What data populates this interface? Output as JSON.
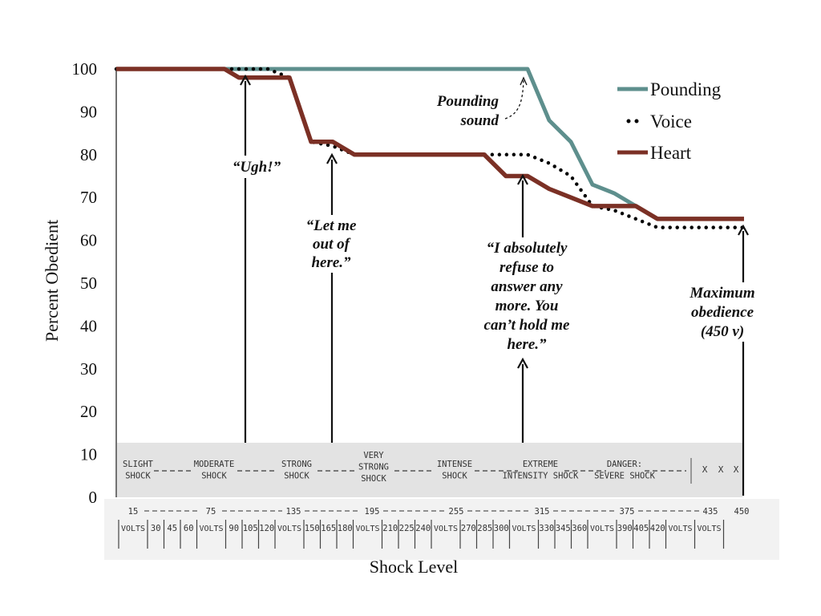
{
  "chart_data": {
    "type": "line",
    "ylabel": "Percent Obedient",
    "xlabel": "Shock Level",
    "ylim": [
      0,
      100
    ],
    "xlim": [
      15,
      450
    ],
    "yticks": [
      0,
      10,
      20,
      30,
      40,
      50,
      60,
      70,
      80,
      90,
      100
    ],
    "series": [
      {
        "name": "Pounding",
        "color": "#5e8f8d",
        "style": "solid",
        "points": [
          [
            15,
            100
          ],
          [
            285,
            100
          ],
          [
            300,
            100
          ],
          [
            315,
            88
          ],
          [
            330,
            83
          ],
          [
            345,
            73
          ],
          [
            360,
            71
          ],
          [
            375,
            68
          ],
          [
            390,
            65
          ],
          [
            405,
            65
          ],
          [
            420,
            65
          ],
          [
            435,
            65
          ],
          [
            450,
            65
          ]
        ]
      },
      {
        "name": "Voice",
        "color": "#000000",
        "style": "dotted",
        "points": [
          [
            15,
            100
          ],
          [
            90,
            100
          ],
          [
            120,
            100
          ],
          [
            135,
            98
          ],
          [
            150,
            83
          ],
          [
            165,
            82
          ],
          [
            180,
            80
          ],
          [
            195,
            80
          ],
          [
            210,
            80
          ],
          [
            225,
            80
          ],
          [
            240,
            80
          ],
          [
            255,
            80
          ],
          [
            270,
            80
          ],
          [
            285,
            80
          ],
          [
            300,
            80
          ],
          [
            315,
            78
          ],
          [
            330,
            75
          ],
          [
            345,
            68
          ],
          [
            360,
            67
          ],
          [
            375,
            65
          ],
          [
            390,
            63
          ],
          [
            405,
            63
          ],
          [
            420,
            63
          ],
          [
            435,
            63
          ],
          [
            450,
            63
          ]
        ]
      },
      {
        "name": "Heart",
        "color": "#7b3025",
        "style": "solid",
        "points": [
          [
            15,
            100
          ],
          [
            90,
            100
          ],
          [
            100,
            98
          ],
          [
            120,
            98
          ],
          [
            135,
            98
          ],
          [
            150,
            83
          ],
          [
            165,
            83
          ],
          [
            180,
            80
          ],
          [
            195,
            80
          ],
          [
            210,
            80
          ],
          [
            225,
            80
          ],
          [
            240,
            80
          ],
          [
            255,
            80
          ],
          [
            270,
            80
          ],
          [
            285,
            75
          ],
          [
            300,
            75
          ],
          [
            315,
            72
          ],
          [
            330,
            70
          ],
          [
            345,
            68
          ],
          [
            360,
            68
          ],
          [
            375,
            68
          ],
          [
            390,
            65
          ],
          [
            405,
            65
          ],
          [
            420,
            65
          ],
          [
            435,
            65
          ],
          [
            450,
            65
          ]
        ]
      }
    ],
    "annotations": [
      {
        "text": "“Ugh!”",
        "x": 105,
        "y": 98
      },
      {
        "text": "“Let me out of here.”",
        "x": 150,
        "y": 80
      },
      {
        "text": "Pounding sound",
        "x": 300,
        "y": 100
      },
      {
        "text": "“I absolutely refuse to answer any more. You can’t hold me here.”",
        "x": 300,
        "y": 75
      },
      {
        "text": "Maximum obedience (450 v)",
        "x": 450,
        "y": 63
      }
    ],
    "legend_position": "top-right",
    "shock_categories": [
      "SLIGHT SHOCK",
      "MODERATE SHOCK",
      "STRONG SHOCK",
      "VERY STRONG SHOCK",
      "INTENSE SHOCK",
      "EXTREME INTENSITY SHOCK",
      "DANGER: SEVERE SHOCK",
      "X X X"
    ],
    "voltage_top_labels": [
      "15",
      "75",
      "135",
      "195",
      "255",
      "315",
      "375",
      "435",
      "450"
    ],
    "voltage_switches": [
      "15",
      "30",
      "45",
      "60",
      "75",
      "90",
      "105",
      "120",
      "135",
      "150",
      "165",
      "180",
      "195",
      "210",
      "225",
      "240",
      "255",
      "270",
      "285",
      "300",
      "315",
      "330",
      "345",
      "360",
      "375",
      "390",
      "405",
      "420",
      "435",
      "450"
    ],
    "volts_word": "VOLTS"
  }
}
